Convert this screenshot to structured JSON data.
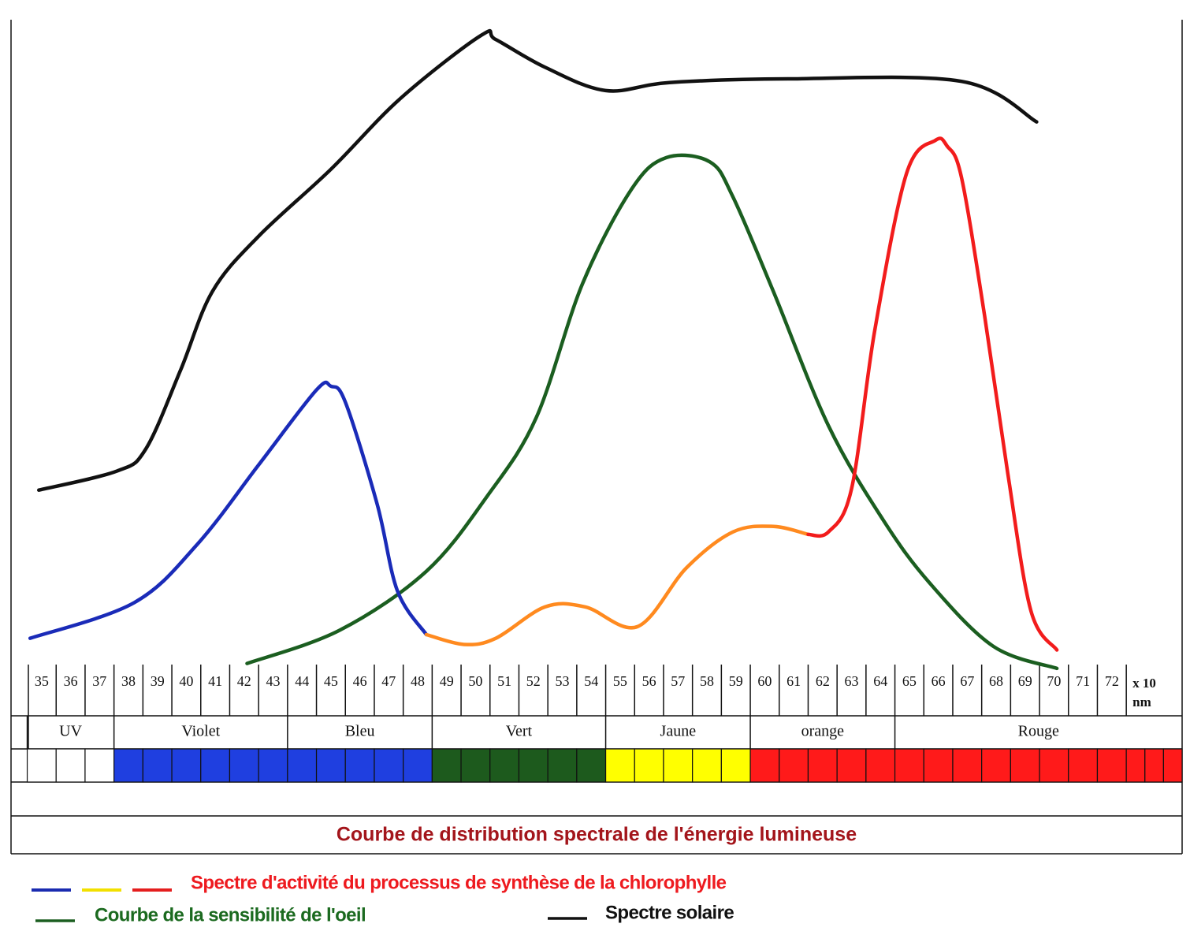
{
  "chart_data": {
    "type": "line",
    "title": "Courbe de distribution spectrale de l'énergie lumineuse",
    "xlim": [
      33.94,
      74.43
    ],
    "ylim": [
      -4,
      100
    ],
    "xticks": [
      35,
      36,
      37,
      38,
      39,
      40,
      41,
      42,
      43,
      44,
      45,
      46,
      47,
      48,
      49,
      50,
      51,
      52,
      53,
      54,
      55,
      56,
      57,
      58,
      59,
      60,
      61,
      62,
      63,
      64,
      65,
      66,
      67,
      68,
      69,
      70,
      71,
      72
    ],
    "xlabel": [
      "x 10",
      "nm"
    ],
    "bands": [
      {
        "name": "UV",
        "from": 35,
        "to": 37,
        "color": "#ffffff"
      },
      {
        "name": "Violet",
        "from": 38,
        "to": 43,
        "color": "#1f3fe0"
      },
      {
        "name": "Bleu",
        "from": 44,
        "to": 48,
        "color": "#1f3fe0"
      },
      {
        "name": "Vert",
        "from": 49,
        "to": 54,
        "color": "#1d5a1d"
      },
      {
        "name": "Jaune",
        "from": 55,
        "to": 59,
        "color": "#ffff00"
      },
      {
        "name": "orange",
        "from": 60,
        "to": 64,
        "color": "#ff1a1a"
      },
      {
        "name": "Rouge",
        "from": 65,
        "to": 72,
        "color": "#ff1a1a"
      }
    ],
    "series": [
      {
        "name": "Spectre solaire",
        "color": "#111111",
        "text_color": "#111111",
        "x": [
          34.9,
          37.6,
          38.6,
          39.8,
          40.9,
          42.5,
          45.0,
          47.4,
          50.2,
          50.7,
          52.4,
          54.5,
          56.7,
          60.8,
          66.8,
          69.4
        ],
        "values": [
          25.4,
          28.5,
          32.1,
          44.9,
          57.7,
          66.7,
          77.6,
          89.1,
          99.4,
          98.7,
          94.2,
          90.4,
          91.7,
          92.3,
          91.9,
          85.3
        ]
      },
      {
        "name": "Courbe de la sensibilité de l'oeil",
        "color": "#1b5e20",
        "text_color": "#1b6a1f",
        "x": [
          42.1,
          45.3,
          48.3,
          50.4,
          52.1,
          53.7,
          55.4,
          56.6,
          58.1,
          58.9,
          60.3,
          62.2,
          64.1,
          65.7,
          67.9,
          70.1
        ],
        "values": [
          -2.8,
          2.6,
          12.2,
          24.4,
          37.2,
          59.0,
          74.4,
          79.5,
          78.8,
          73.1,
          57.7,
          35.9,
          20.5,
          10.3,
          0,
          -3.6
        ]
      },
      {
        "name": "Spectre d'activité du processus de synthèse de la chlorophylle",
        "text_color": "#ee1a1f",
        "legend_colors": [
          "#1a2bb0",
          "#f2e000",
          "#e41e1e"
        ],
        "segments": [
          {
            "color": "#1a2bb8",
            "x": [
              34.6,
              38.2,
              40.4,
              42.5,
              44.5,
              45.0,
              45.5,
              46.6,
              47.3,
              48.3
            ],
            "values": [
              1.3,
              7.1,
              16.7,
              29.5,
              41.7,
              42.3,
              39.7,
              23.1,
              9.0,
              1.9
            ]
          },
          {
            "color": "#ff8a1f",
            "x": [
              48.3,
              49.6,
              50.7,
              52.4,
              53.8,
              55.6,
              57.3,
              58.9,
              60.3,
              61.5
            ],
            "values": [
              1.9,
              0.3,
              1.3,
              6.4,
              6.4,
              3.2,
              12.8,
              18.6,
              19.5,
              18.2
            ]
          },
          {
            "color": "#f21c1c",
            "x": [
              61.5,
              62.2,
              63.0,
              63.8,
              64.9,
              65.9,
              66.3,
              66.8,
              67.6,
              68.4,
              69.2,
              70.1
            ],
            "values": [
              18.2,
              18.6,
              25.6,
              51.3,
              76.9,
              82.3,
              81.4,
              76.3,
              53.8,
              28.2,
              5.8,
              -0.6
            ]
          }
        ]
      }
    ]
  }
}
